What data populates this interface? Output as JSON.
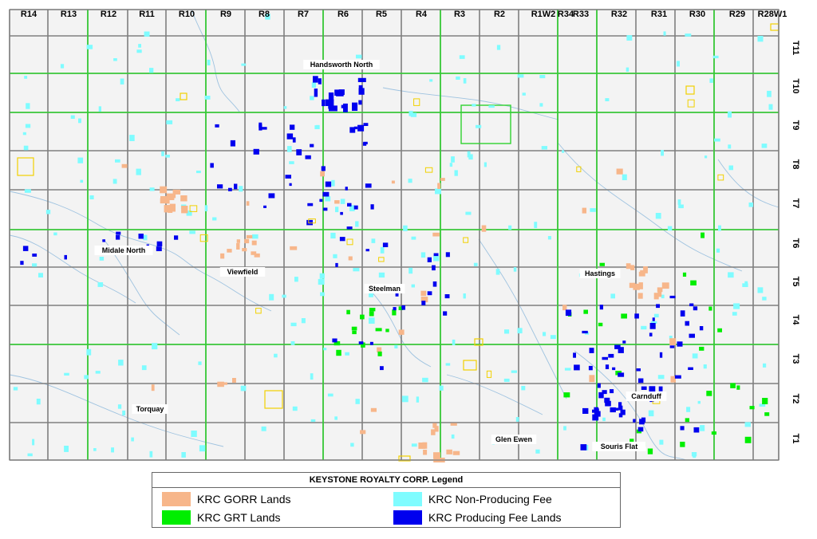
{
  "map": {
    "range_labels": [
      "R14",
      "R13",
      "R12",
      "R11",
      "R10",
      "R9",
      "R8",
      "R7",
      "R6",
      "R5",
      "R4",
      "R3",
      "R2",
      "R1W2",
      "R34",
      "R33",
      "R32",
      "R31",
      "R30",
      "R29",
      "R28W1"
    ],
    "township_labels": [
      "T11",
      "T10",
      "T9",
      "T8",
      "T7",
      "T6",
      "T5",
      "T4",
      "T3",
      "T2",
      "T1"
    ],
    "area_labels": [
      "Handsworth North",
      "Midale North",
      "Viewfield",
      "Steelman",
      "Hastings",
      "Torquay",
      "Carnduff",
      "Glen Ewen",
      "Souris Flat"
    ],
    "colors": {
      "background": "#f3f3f3",
      "township_grid": "#7f7f7f",
      "range_boundary": "#2fd32f",
      "river": "#9fc3e0",
      "gorr": "#f7b68a",
      "grt": "#00ee00",
      "non_producing_fee": "#7ffcff",
      "producing_fee": "#0000ee",
      "outline": "#f2d100"
    }
  },
  "legend": {
    "title": "KEYSTONE ROYALTY CORP. Legend",
    "items": [
      {
        "label": "KRC GORR Lands",
        "color": "#f7b68a"
      },
      {
        "label": "KRC GRT Lands",
        "color": "#00ee00"
      },
      {
        "label": "KRC Non-Producing Fee",
        "color": "#7ffcff"
      },
      {
        "label": "KRC Producing Fee Lands",
        "color": "#0000ee"
      }
    ]
  }
}
